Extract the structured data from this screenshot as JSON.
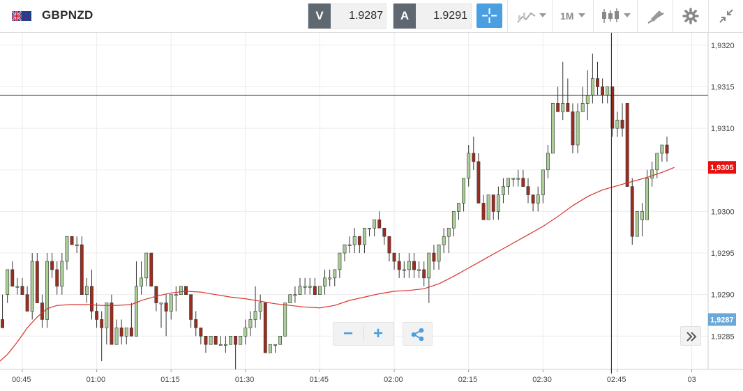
{
  "header": {
    "symbol": "GBPNZD",
    "bid_label": "V",
    "bid_value": "1.9287",
    "ask_label": "A",
    "ask_value": "1.9291",
    "timeframe": "1M"
  },
  "icons": [
    "flag-uk-nz-icon",
    "crosshair-icon",
    "chart-type-icon",
    "candlestick-icon",
    "drawing-icon",
    "gear-icon",
    "collapse-icon",
    "zoom-out-icon",
    "zoom-in-icon",
    "share-icon",
    "scroll-right-icon"
  ],
  "colors": {
    "up_candle": "#a9cf97",
    "down_candle": "#9b2d20",
    "ma_line": "#d9332b",
    "accent": "#4a9fe0",
    "current_price_label": "#e80f0f",
    "bid_price_label": "#6aa8d8"
  },
  "chart_data": {
    "type": "candlestick",
    "instrument": "GBPNZD",
    "timeframe": "1M",
    "ylim": [
      1.9281,
      1.93215
    ],
    "y_ticks": [
      "1,9285",
      "1,9290",
      "1,9295",
      "1,9300",
      "1,9305",
      "1,9310",
      "1,9315",
      "1,9320"
    ],
    "y_tick_values": [
      1.9285,
      1.929,
      1.9295,
      1.93,
      1.9305,
      1.931,
      1.9315,
      1.932
    ],
    "x_ticks": [
      "00:45",
      "01:00",
      "01:15",
      "01:30",
      "01:45",
      "02:00",
      "02:15",
      "02:30",
      "02:45",
      "03"
    ],
    "x_tick_minutes": [
      45,
      60,
      75,
      90,
      105,
      120,
      135,
      150,
      165,
      180
    ],
    "x_range_minutes": [
      40.5,
      183.3
    ],
    "grid": true,
    "current_price": 1.93053,
    "current_price_label": "1,9305",
    "bid_price": 1.9287,
    "bid_price_label": "1,9287",
    "crosshair": {
      "price": 1.9314,
      "minute": 163.8
    },
    "candles": [
      [
        41,
        1.9287,
        1.929,
        1.9286,
        1.9286
      ],
      [
        42,
        1.929,
        1.9293,
        1.9289,
        1.9293
      ],
      [
        43,
        1.9293,
        1.9294,
        1.9291,
        1.9291
      ],
      [
        44,
        1.9291,
        1.9292,
        1.929,
        1.9291
      ],
      [
        45,
        1.9291,
        1.9292,
        1.929,
        1.929
      ],
      [
        46,
        1.929,
        1.9291,
        1.9288,
        1.9288
      ],
      [
        47,
        1.9288,
        1.9295,
        1.9287,
        1.9294
      ],
      [
        48,
        1.9294,
        1.9295,
        1.9289,
        1.9289
      ],
      [
        49,
        1.9289,
        1.929,
        1.9286,
        1.9287
      ],
      [
        50,
        1.9287,
        1.9295,
        1.9286,
        1.9294
      ],
      [
        51,
        1.9294,
        1.9295,
        1.9292,
        1.9293
      ],
      [
        52,
        1.9293,
        1.9294,
        1.929,
        1.9291
      ],
      [
        53,
        1.9291,
        1.9295,
        1.929,
        1.9294
      ],
      [
        54,
        1.9294,
        1.9297,
        1.9293,
        1.9297
      ],
      [
        55,
        1.9297,
        1.9297,
        1.9296,
        1.9296
      ],
      [
        56,
        1.9296,
        1.9297,
        1.9295,
        1.9296
      ],
      [
        57,
        1.9296,
        1.9297,
        1.929,
        1.929
      ],
      [
        58,
        1.929,
        1.9292,
        1.9289,
        1.9291
      ],
      [
        59,
        1.9291,
        1.9293,
        1.9287,
        1.9288
      ],
      [
        60,
        1.9288,
        1.9289,
        1.9286,
        1.9287
      ],
      [
        61,
        1.9287,
        1.9288,
        1.9282,
        1.9286
      ],
      [
        62,
        1.9286,
        1.9289,
        1.9284,
        1.9289
      ],
      [
        63,
        1.9289,
        1.929,
        1.9284,
        1.9284
      ],
      [
        64,
        1.9284,
        1.9287,
        1.9284,
        1.9286
      ],
      [
        65,
        1.9286,
        1.9287,
        1.9284,
        1.9285
      ],
      [
        66,
        1.9285,
        1.9286,
        1.9284,
        1.9286
      ],
      [
        67,
        1.9286,
        1.9289,
        1.9285,
        1.9285
      ],
      [
        68,
        1.9285,
        1.9294,
        1.9285,
        1.9291
      ],
      [
        69,
        1.9291,
        1.9294,
        1.929,
        1.9292
      ],
      [
        70,
        1.9292,
        1.9295,
        1.9291,
        1.9295
      ],
      [
        71,
        1.9295,
        1.9295,
        1.9291,
        1.9291
      ],
      [
        72,
        1.9291,
        1.9291,
        1.9288,
        1.9289
      ],
      [
        73,
        1.9289,
        1.9289,
        1.9286,
        1.9289
      ],
      [
        74,
        1.9289,
        1.929,
        1.9285,
        1.9288
      ],
      [
        75,
        1.9288,
        1.929,
        1.9287,
        1.929
      ],
      [
        76,
        1.929,
        1.9291,
        1.9288,
        1.929
      ],
      [
        77,
        1.929,
        1.9291,
        1.929,
        1.9291
      ],
      [
        78,
        1.9291,
        1.9291,
        1.929,
        1.929
      ],
      [
        79,
        1.929,
        1.929,
        1.9286,
        1.9287
      ],
      [
        80,
        1.9287,
        1.9288,
        1.9285,
        1.9286
      ],
      [
        81,
        1.9286,
        1.9286,
        1.9284,
        1.9285
      ],
      [
        82,
        1.9285,
        1.9285,
        1.9283,
        1.9284
      ],
      [
        83,
        1.9284,
        1.9285,
        1.9284,
        1.9285
      ],
      [
        84,
        1.9285,
        1.9285,
        1.9284,
        1.9284
      ],
      [
        85,
        1.9284,
        1.9285,
        1.9284,
        1.9284
      ],
      [
        86,
        1.9284,
        1.9285,
        1.9283,
        1.9284
      ],
      [
        87,
        1.9284,
        1.9285,
        1.9284,
        1.9285
      ],
      [
        88,
        1.9285,
        1.9285,
        1.9281,
        1.9284
      ],
      [
        89,
        1.9284,
        1.9285,
        1.9284,
        1.9285
      ],
      [
        90,
        1.9285,
        1.9287,
        1.9284,
        1.9286
      ],
      [
        91,
        1.9286,
        1.9288,
        1.9285,
        1.9287
      ],
      [
        92,
        1.9287,
        1.9291,
        1.9286,
        1.9288
      ],
      [
        93,
        1.9288,
        1.929,
        1.9287,
        1.9289
      ],
      [
        94,
        1.9289,
        1.9289,
        1.9283,
        1.9283
      ],
      [
        95,
        1.9283,
        1.9284,
        1.9283,
        1.9284
      ],
      [
        96,
        1.9284,
        1.9284,
        1.9283,
        1.9284
      ],
      [
        97,
        1.9284,
        1.9285,
        1.9284,
        1.9285
      ],
      [
        98,
        1.9285,
        1.9289,
        1.9285,
        1.9289
      ],
      [
        99,
        1.9289,
        1.929,
        1.9289,
        1.929
      ],
      [
        100,
        1.929,
        1.9291,
        1.9289,
        1.929
      ],
      [
        101,
        1.929,
        1.9292,
        1.929,
        1.9291
      ],
      [
        102,
        1.9291,
        1.9292,
        1.929,
        1.9291
      ],
      [
        103,
        1.9291,
        1.9292,
        1.929,
        1.9291
      ],
      [
        104,
        1.9291,
        1.9292,
        1.929,
        1.929
      ],
      [
        105,
        1.929,
        1.9291,
        1.929,
        1.9291
      ],
      [
        106,
        1.9291,
        1.9293,
        1.929,
        1.9292
      ],
      [
        107,
        1.9292,
        1.9293,
        1.9291,
        1.9292
      ],
      [
        108,
        1.9292,
        1.9293,
        1.9291,
        1.9293
      ],
      [
        109,
        1.9293,
        1.9295,
        1.9292,
        1.9295
      ],
      [
        110,
        1.9295,
        1.9296,
        1.9294,
        1.9296
      ],
      [
        111,
        1.9296,
        1.9297,
        1.9295,
        1.9296
      ],
      [
        112,
        1.9296,
        1.9298,
        1.9295,
        1.9297
      ],
      [
        113,
        1.9297,
        1.9297,
        1.9295,
        1.9296
      ],
      [
        114,
        1.9296,
        1.9298,
        1.9295,
        1.9298
      ],
      [
        115,
        1.9298,
        1.9298,
        1.9297,
        1.9298
      ],
      [
        116,
        1.9298,
        1.9299,
        1.9297,
        1.9299
      ],
      [
        117,
        1.9299,
        1.93,
        1.9298,
        1.9298
      ],
      [
        118,
        1.9298,
        1.9298,
        1.9296,
        1.9297
      ],
      [
        119,
        1.9297,
        1.9297,
        1.9294,
        1.9295
      ],
      [
        120,
        1.9295,
        1.9295,
        1.9293,
        1.9294
      ],
      [
        121,
        1.9294,
        1.9295,
        1.9292,
        1.9293
      ],
      [
        122,
        1.9293,
        1.9294,
        1.9292,
        1.9293
      ],
      [
        123,
        1.9293,
        1.9295,
        1.9292,
        1.9294
      ],
      [
        124,
        1.9294,
        1.9295,
        1.9292,
        1.9293
      ],
      [
        125,
        1.9293,
        1.9294,
        1.9292,
        1.9293
      ],
      [
        126,
        1.9293,
        1.9294,
        1.9291,
        1.9292
      ],
      [
        127,
        1.9292,
        1.9295,
        1.9289,
        1.9295
      ],
      [
        128,
        1.9295,
        1.9296,
        1.9293,
        1.9294
      ],
      [
        129,
        1.9294,
        1.9296,
        1.9293,
        1.9296
      ],
      [
        130,
        1.9296,
        1.9298,
        1.9295,
        1.9297
      ],
      [
        131,
        1.9297,
        1.9298,
        1.9295,
        1.9298
      ],
      [
        132,
        1.9298,
        1.93,
        1.9297,
        1.93
      ],
      [
        133,
        1.93,
        1.9301,
        1.9299,
        1.9301
      ],
      [
        134,
        1.9301,
        1.9304,
        1.93,
        1.9304
      ],
      [
        135,
        1.9304,
        1.9308,
        1.9303,
        1.9307
      ],
      [
        136,
        1.9307,
        1.9309,
        1.9305,
        1.9306
      ],
      [
        137,
        1.9306,
        1.9307,
        1.9301,
        1.9301
      ],
      [
        138,
        1.9301,
        1.9302,
        1.9299,
        1.9299
      ],
      [
        139,
        1.9299,
        1.9302,
        1.9299,
        1.9302
      ],
      [
        140,
        1.9302,
        1.9302,
        1.9299,
        1.93
      ],
      [
        141,
        1.93,
        1.9303,
        1.9299,
        1.9302
      ],
      [
        142,
        1.9302,
        1.9304,
        1.9301,
        1.9303
      ],
      [
        143,
        1.9303,
        1.9304,
        1.9302,
        1.9304
      ],
      [
        144,
        1.9304,
        1.9304,
        1.9303,
        1.9304
      ],
      [
        145,
        1.9304,
        1.9305,
        1.9303,
        1.9304
      ],
      [
        146,
        1.9304,
        1.9305,
        1.9303,
        1.9303
      ],
      [
        147,
        1.9303,
        1.9304,
        1.9301,
        1.9302
      ],
      [
        148,
        1.9302,
        1.9302,
        1.93,
        1.9301
      ],
      [
        149,
        1.9301,
        1.9303,
        1.93,
        1.9302
      ],
      [
        150,
        1.9302,
        1.9305,
        1.9301,
        1.9305
      ],
      [
        151,
        1.9305,
        1.9308,
        1.9304,
        1.9307
      ],
      [
        152,
        1.9307,
        1.9313,
        1.9307,
        1.9313
      ],
      [
        153,
        1.9313,
        1.9315,
        1.9312,
        1.9312
      ],
      [
        154,
        1.9312,
        1.9318,
        1.9311,
        1.9313
      ],
      [
        155,
        1.9313,
        1.9316,
        1.9312,
        1.9312
      ],
      [
        156,
        1.9312,
        1.9313,
        1.9307,
        1.9308
      ],
      [
        157,
        1.9308,
        1.9313,
        1.9307,
        1.9312
      ],
      [
        158,
        1.9312,
        1.9315,
        1.9312,
        1.9313
      ],
      [
        159,
        1.9313,
        1.9317,
        1.9311,
        1.9314
      ],
      [
        160,
        1.9314,
        1.9319,
        1.9313,
        1.9316
      ],
      [
        161,
        1.9316,
        1.9318,
        1.9314,
        1.9315
      ],
      [
        162,
        1.9315,
        1.9316,
        1.9313,
        1.9314
      ],
      [
        163,
        1.9314,
        1.9315,
        1.9313,
        1.9315
      ],
      [
        164,
        1.9315,
        1.9315,
        1.9309,
        1.931
      ],
      [
        165,
        1.931,
        1.9312,
        1.9309,
        1.9311
      ],
      [
        166,
        1.9311,
        1.9313,
        1.9309,
        1.931
      ],
      [
        167,
        1.9313,
        1.9313,
        1.9303,
        1.9303
      ],
      [
        168,
        1.9303,
        1.9304,
        1.9296,
        1.9297
      ],
      [
        169,
        1.9297,
        1.93,
        1.9297,
        1.93
      ],
      [
        170,
        1.9299,
        1.9301,
        1.9297,
        1.93
      ],
      [
        171,
        1.9299,
        1.9305,
        1.9299,
        1.9304
      ],
      [
        172,
        1.9304,
        1.9306,
        1.9303,
        1.9305
      ],
      [
        173,
        1.9305,
        1.9307,
        1.9304,
        1.9307
      ],
      [
        174,
        1.9307,
        1.9308,
        1.9306,
        1.9308
      ],
      [
        175,
        1.9308,
        1.9309,
        1.9306,
        1.9307
      ]
    ],
    "ma": [
      [
        40.5,
        1.9282
      ],
      [
        42,
        1.92828
      ],
      [
        44,
        1.92843
      ],
      [
        46,
        1.9286
      ],
      [
        48,
        1.92873
      ],
      [
        50,
        1.92883
      ],
      [
        52,
        1.92887
      ],
      [
        55,
        1.92888
      ],
      [
        58,
        1.92888
      ],
      [
        61,
        1.92887
      ],
      [
        64,
        1.92887
      ],
      [
        67,
        1.92888
      ],
      [
        69,
        1.92893
      ],
      [
        72,
        1.92898
      ],
      [
        75,
        1.92902
      ],
      [
        78,
        1.92904
      ],
      [
        81,
        1.92903
      ],
      [
        84,
        1.929
      ],
      [
        87,
        1.92897
      ],
      [
        90,
        1.92895
      ],
      [
        93,
        1.92892
      ],
      [
        96,
        1.92889
      ],
      [
        99,
        1.92887
      ],
      [
        102,
        1.92885
      ],
      [
        105,
        1.92884
      ],
      [
        108,
        1.92887
      ],
      [
        111,
        1.92893
      ],
      [
        114,
        1.92897
      ],
      [
        117,
        1.92901
      ],
      [
        120,
        1.92904
      ],
      [
        123,
        1.92905
      ],
      [
        126,
        1.92907
      ],
      [
        129,
        1.92913
      ],
      [
        132,
        1.92922
      ],
      [
        135,
        1.92932
      ],
      [
        138,
        1.92942
      ],
      [
        141,
        1.92952
      ],
      [
        144,
        1.92962
      ],
      [
        147,
        1.92972
      ],
      [
        150,
        1.92982
      ],
      [
        153,
        1.92994
      ],
      [
        156,
        1.93007
      ],
      [
        159,
        1.93018
      ],
      [
        162,
        1.93026
      ],
      [
        165,
        1.93031
      ],
      [
        168,
        1.93036
      ],
      [
        171,
        1.93041
      ],
      [
        174,
        1.93047
      ],
      [
        176.5,
        1.93053
      ]
    ]
  }
}
